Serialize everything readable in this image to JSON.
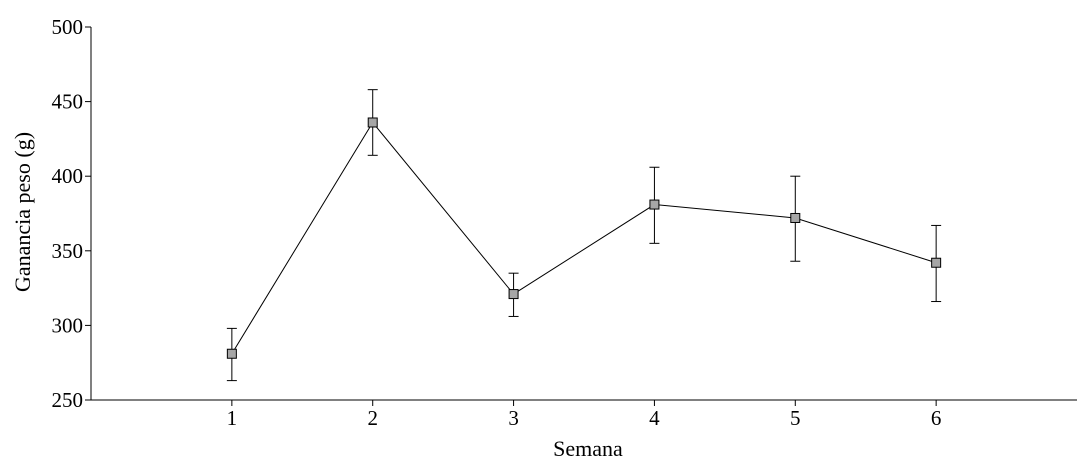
{
  "chart_data": {
    "type": "line",
    "title": "",
    "xlabel": "Semana",
    "ylabel": "Ganancia peso (g)",
    "x": [
      1,
      2,
      3,
      4,
      5,
      6
    ],
    "xlim": [
      0,
      7
    ],
    "ylim": [
      250,
      500
    ],
    "y_ticks": [
      250,
      300,
      350,
      400,
      450,
      500
    ],
    "x_ticks": [
      1,
      2,
      3,
      4,
      5,
      6
    ],
    "grid": false,
    "legend": "none",
    "series": [
      {
        "values": [
          281,
          436,
          321,
          381,
          372,
          342
        ],
        "error_lower": [
          263,
          414,
          306,
          355,
          343,
          316
        ],
        "error_upper": [
          298,
          458,
          335,
          406,
          400,
          367
        ],
        "marker": "square",
        "marker_color": "#a6a6a6",
        "line_color": "#000000"
      }
    ]
  }
}
